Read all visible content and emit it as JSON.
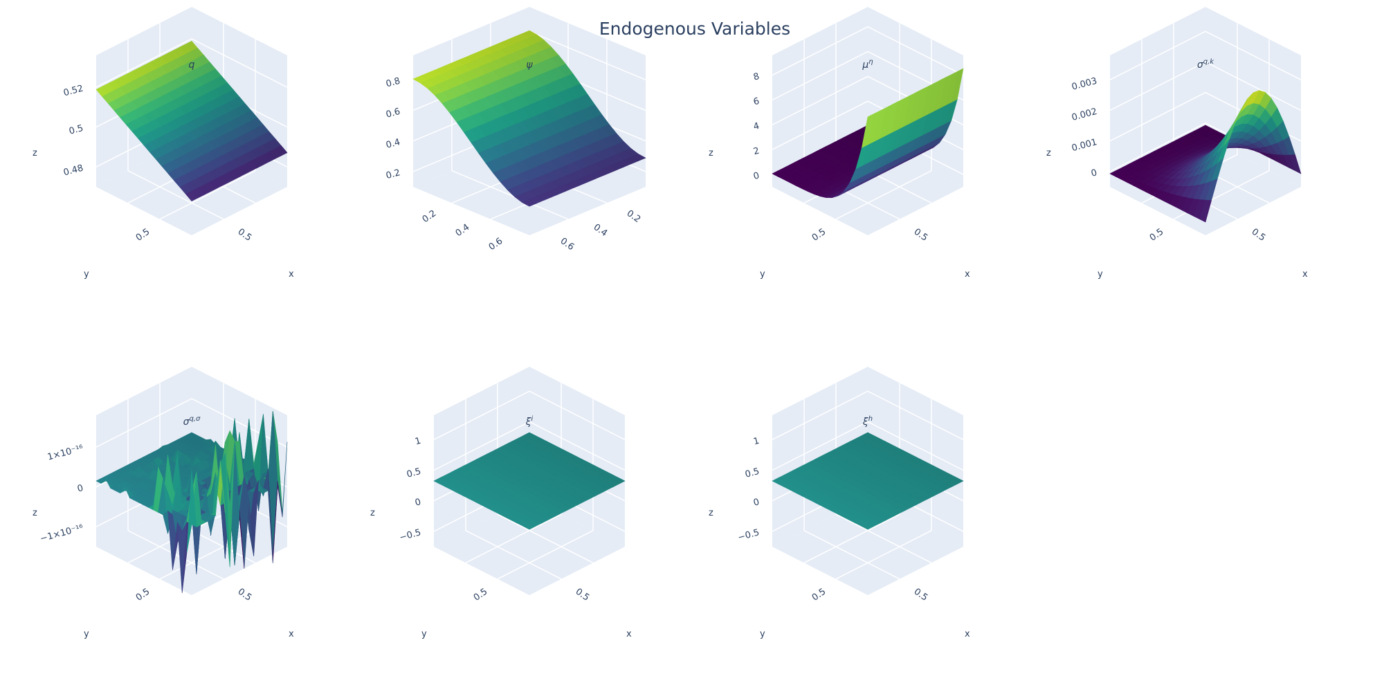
{
  "title": "Endogenous Variables",
  "colors": {
    "background": "#ffffff",
    "scene_bg": "#e5ecf6",
    "grid": "#ffffff",
    "text": "#2a3f5f",
    "colorscale": [
      "#440154",
      "#482878",
      "#3e4989",
      "#31688e",
      "#26828e",
      "#1f9e89",
      "#35b779",
      "#6ece58",
      "#b5de2b",
      "#fde725"
    ]
  },
  "chart_data": [
    {
      "type": "surface",
      "title": "q",
      "xlabel": "x",
      "ylabel": "y",
      "zlabel": "z",
      "xticks": [
        "0.5"
      ],
      "yticks": [
        "0.5"
      ],
      "zticks": [
        "0.48",
        "0.5",
        "0.52"
      ],
      "zlim": [
        0.47,
        0.535
      ],
      "surface": "plane",
      "z_low": 0.475,
      "z_high": 0.53,
      "color_low": 0.1,
      "color_high": 0.9
    },
    {
      "type": "surface",
      "title": "ψ",
      "xlabel": "",
      "ylabel": "",
      "zlabel": "",
      "xticks": [
        "0.2",
        "0.4",
        "0.6"
      ],
      "yticks": [
        "0.2",
        "0.4",
        "0.6"
      ],
      "zticks": [
        "0.2",
        "0.4",
        "0.6",
        "0.8"
      ],
      "zlim": [
        0.1,
        0.9
      ],
      "surface": "fold",
      "z_low": 0.12,
      "z_high": 0.9
    },
    {
      "type": "surface",
      "title": "μ^η",
      "xlabel": "x",
      "ylabel": "y",
      "zlabel": "z",
      "xticks": [
        "0.5"
      ],
      "yticks": [
        "0.5"
      ],
      "zticks": [
        "0",
        "2",
        "4",
        "6",
        "8"
      ],
      "zlim": [
        0,
        9
      ],
      "surface": "wall",
      "z_low": 0,
      "z_high": 9
    },
    {
      "type": "surface",
      "title": "σ^{q,k}",
      "xlabel": "x",
      "ylabel": "y",
      "zlabel": "z",
      "xticks": [
        "0.5"
      ],
      "yticks": [
        "0.5"
      ],
      "zticks": [
        "0",
        "0.001",
        "0.002",
        "0.003"
      ],
      "zlim": [
        0,
        0.0035
      ],
      "surface": "ridge",
      "z_low": 0,
      "z_high": 0.0032
    },
    {
      "type": "surface",
      "title": "σ^{q,σ}",
      "xlabel": "x",
      "ylabel": "y",
      "zlabel": "z",
      "xticks": [
        "0.5"
      ],
      "yticks": [
        "0.5"
      ],
      "zticks": [
        "−1×10⁻¹⁶",
        "0",
        "1×10⁻¹⁶"
      ],
      "zlim": [
        -1.3e-16,
        1.3e-16
      ],
      "surface": "noise",
      "z_low": -1.2e-16,
      "z_high": 1.2e-16
    },
    {
      "type": "surface",
      "title": "ξ^i",
      "xlabel": "x",
      "ylabel": "y",
      "zlabel": "z",
      "xticks": [
        "0.5"
      ],
      "yticks": [
        "0.5"
      ],
      "zticks": [
        "−0.5",
        "0",
        "0.5",
        "1"
      ],
      "zlim": [
        -1,
        1
      ],
      "surface": "flat",
      "z_low": 0,
      "z_high": 0
    },
    {
      "type": "surface",
      "title": "ξ^h",
      "xlabel": "x",
      "ylabel": "y",
      "zlabel": "z",
      "xticks": [
        "0.5"
      ],
      "yticks": [
        "0.5"
      ],
      "zticks": [
        "−0.5",
        "0",
        "0.5",
        "1"
      ],
      "zlim": [
        -1,
        1
      ],
      "surface": "flat",
      "z_low": 0,
      "z_high": 0
    }
  ]
}
